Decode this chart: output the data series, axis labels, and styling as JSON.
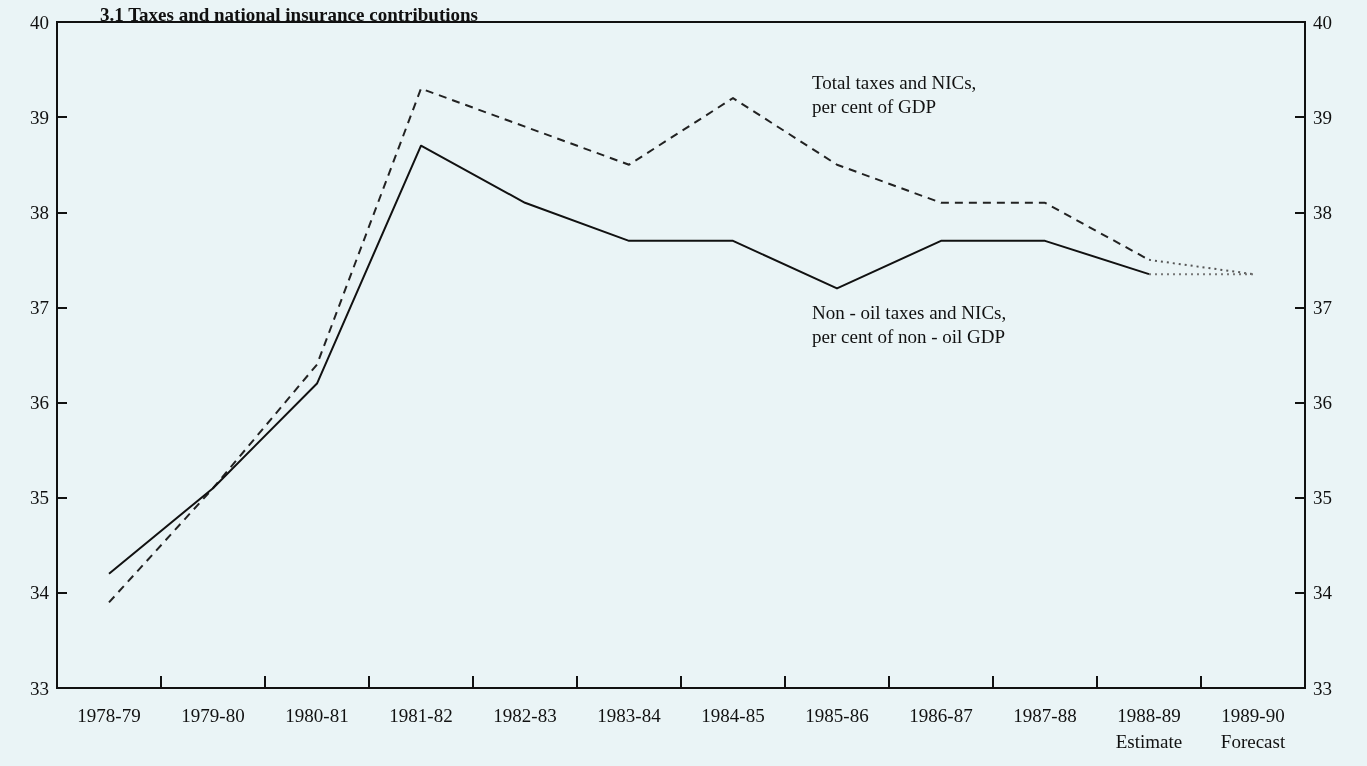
{
  "chart_data": {
    "type": "line",
    "title": "3.1 Taxes and national insurance contributions",
    "categories": [
      "1978-79",
      "1979-80",
      "1980-81",
      "1981-82",
      "1982-83",
      "1983-84",
      "1984-85",
      "1985-86",
      "1986-87",
      "1987-88",
      "1988-89\nEstimate",
      "1989-90\nForecast"
    ],
    "series": [
      {
        "color": "#222222",
        "line_style": "dashed",
        "values": [
          33.9,
          35.1,
          36.4,
          39.3,
          38.9,
          38.5,
          39.2,
          38.5,
          38.1,
          38.1,
          37.5,
          null
        ]
      },
      {
        "color": "#111111",
        "line_style": "solid",
        "values": [
          34.2,
          35.1,
          36.2,
          38.7,
          38.1,
          37.7,
          37.7,
          37.2,
          37.7,
          37.7,
          37.35,
          null
        ]
      },
      {
        "color": "#555555",
        "line_style": "dotted",
        "values": [
          null,
          null,
          null,
          null,
          null,
          null,
          null,
          null,
          null,
          null,
          37.5,
          37.35
        ]
      },
      {
        "color": "#777777",
        "line_style": "dotted",
        "values": [
          null,
          null,
          null,
          null,
          null,
          null,
          null,
          null,
          null,
          null,
          37.35,
          37.35
        ]
      }
    ],
    "annotations": [
      "Total taxes and NICs,\nper cent of GDP",
      "Non - oil taxes and NICs,\nper cent of non - oil GDP"
    ],
    "ylim": [
      33,
      40
    ],
    "yticks": [
      33,
      34,
      35,
      36,
      37,
      38,
      39,
      40
    ],
    "y2lim": [
      33,
      40
    ],
    "y2ticks": [
      33,
      34,
      35,
      36,
      37,
      38,
      39,
      40
    ],
    "marker": "none",
    "grid": false
  }
}
